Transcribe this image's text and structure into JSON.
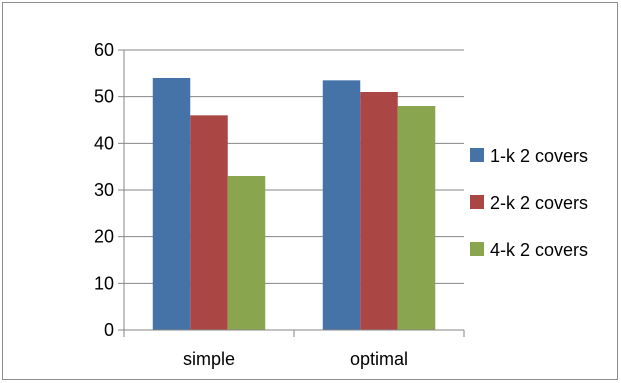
{
  "chart_data": {
    "type": "bar",
    "categories": [
      "simple",
      "optimal"
    ],
    "series": [
      {
        "name": "1-k 2 covers",
        "values": [
          54,
          53.5
        ],
        "color": "#4572A7"
      },
      {
        "name": "2-k 2 covers",
        "values": [
          46,
          51
        ],
        "color": "#AA4643"
      },
      {
        "name": "4-k 2 covers",
        "values": [
          33,
          48
        ],
        "color": "#89A54E"
      }
    ],
    "yticks": [
      0,
      10,
      20,
      30,
      40,
      50,
      60
    ],
    "ylim": [
      0,
      60
    ],
    "grid": true,
    "legend_position": "right"
  }
}
